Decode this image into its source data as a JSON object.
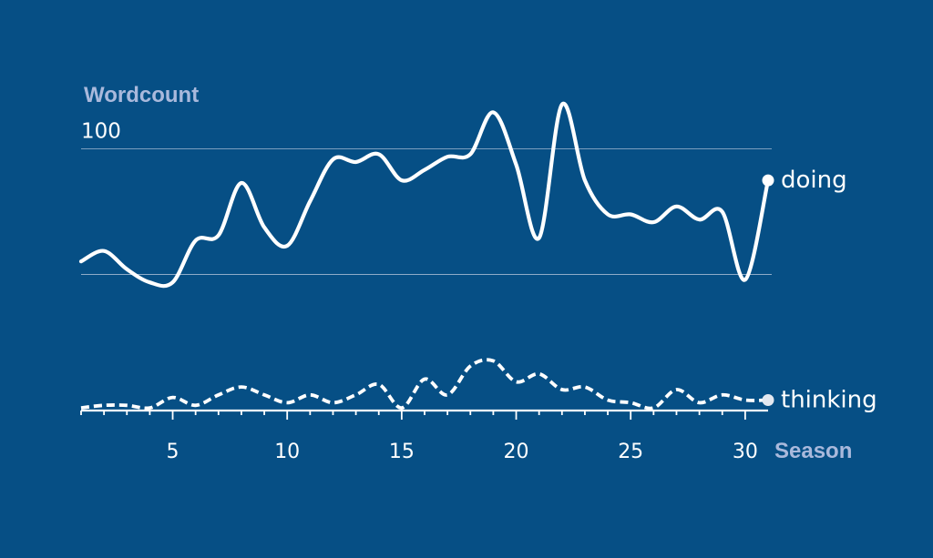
{
  "chart_data": {
    "type": "line",
    "ylabel": "Wordcount",
    "xlabel": "Season",
    "ytick_labels": [
      {
        "value": 100,
        "label": "100"
      }
    ],
    "xticks": [
      5,
      10,
      15,
      20,
      25,
      30
    ],
    "xlim": [
      1,
      31
    ],
    "ylim": [
      0,
      103
    ],
    "grid_values": [
      52,
      100
    ],
    "x": [
      1,
      2,
      3,
      4,
      5,
      6,
      7,
      8,
      9,
      10,
      11,
      12,
      13,
      14,
      15,
      16,
      17,
      18,
      19,
      20,
      21,
      22,
      23,
      24,
      25,
      26,
      27,
      28,
      29,
      30,
      31
    ],
    "series": [
      {
        "name": "doing",
        "style": "solid",
        "values": [
          57,
          61,
          54,
          49,
          49,
          65,
          67,
          87,
          70,
          63,
          80,
          96,
          95,
          98,
          88,
          92,
          97,
          98,
          114,
          94,
          66,
          117,
          88,
          75,
          75,
          72,
          78,
          73,
          76,
          50,
          88
        ]
      },
      {
        "name": "thinking",
        "style": "dashed",
        "values": [
          1,
          2,
          2,
          1,
          5,
          2,
          6,
          9,
          6,
          3,
          6,
          3,
          6,
          10,
          1,
          12,
          6,
          17,
          19,
          11,
          14,
          8,
          9,
          4,
          3,
          1,
          8,
          3,
          6,
          4,
          4
        ]
      }
    ],
    "colors": {
      "background": "#064f85",
      "line": "#ffffff",
      "axis_title": "#a9b9dc",
      "grid": "#c9d4e6"
    }
  }
}
